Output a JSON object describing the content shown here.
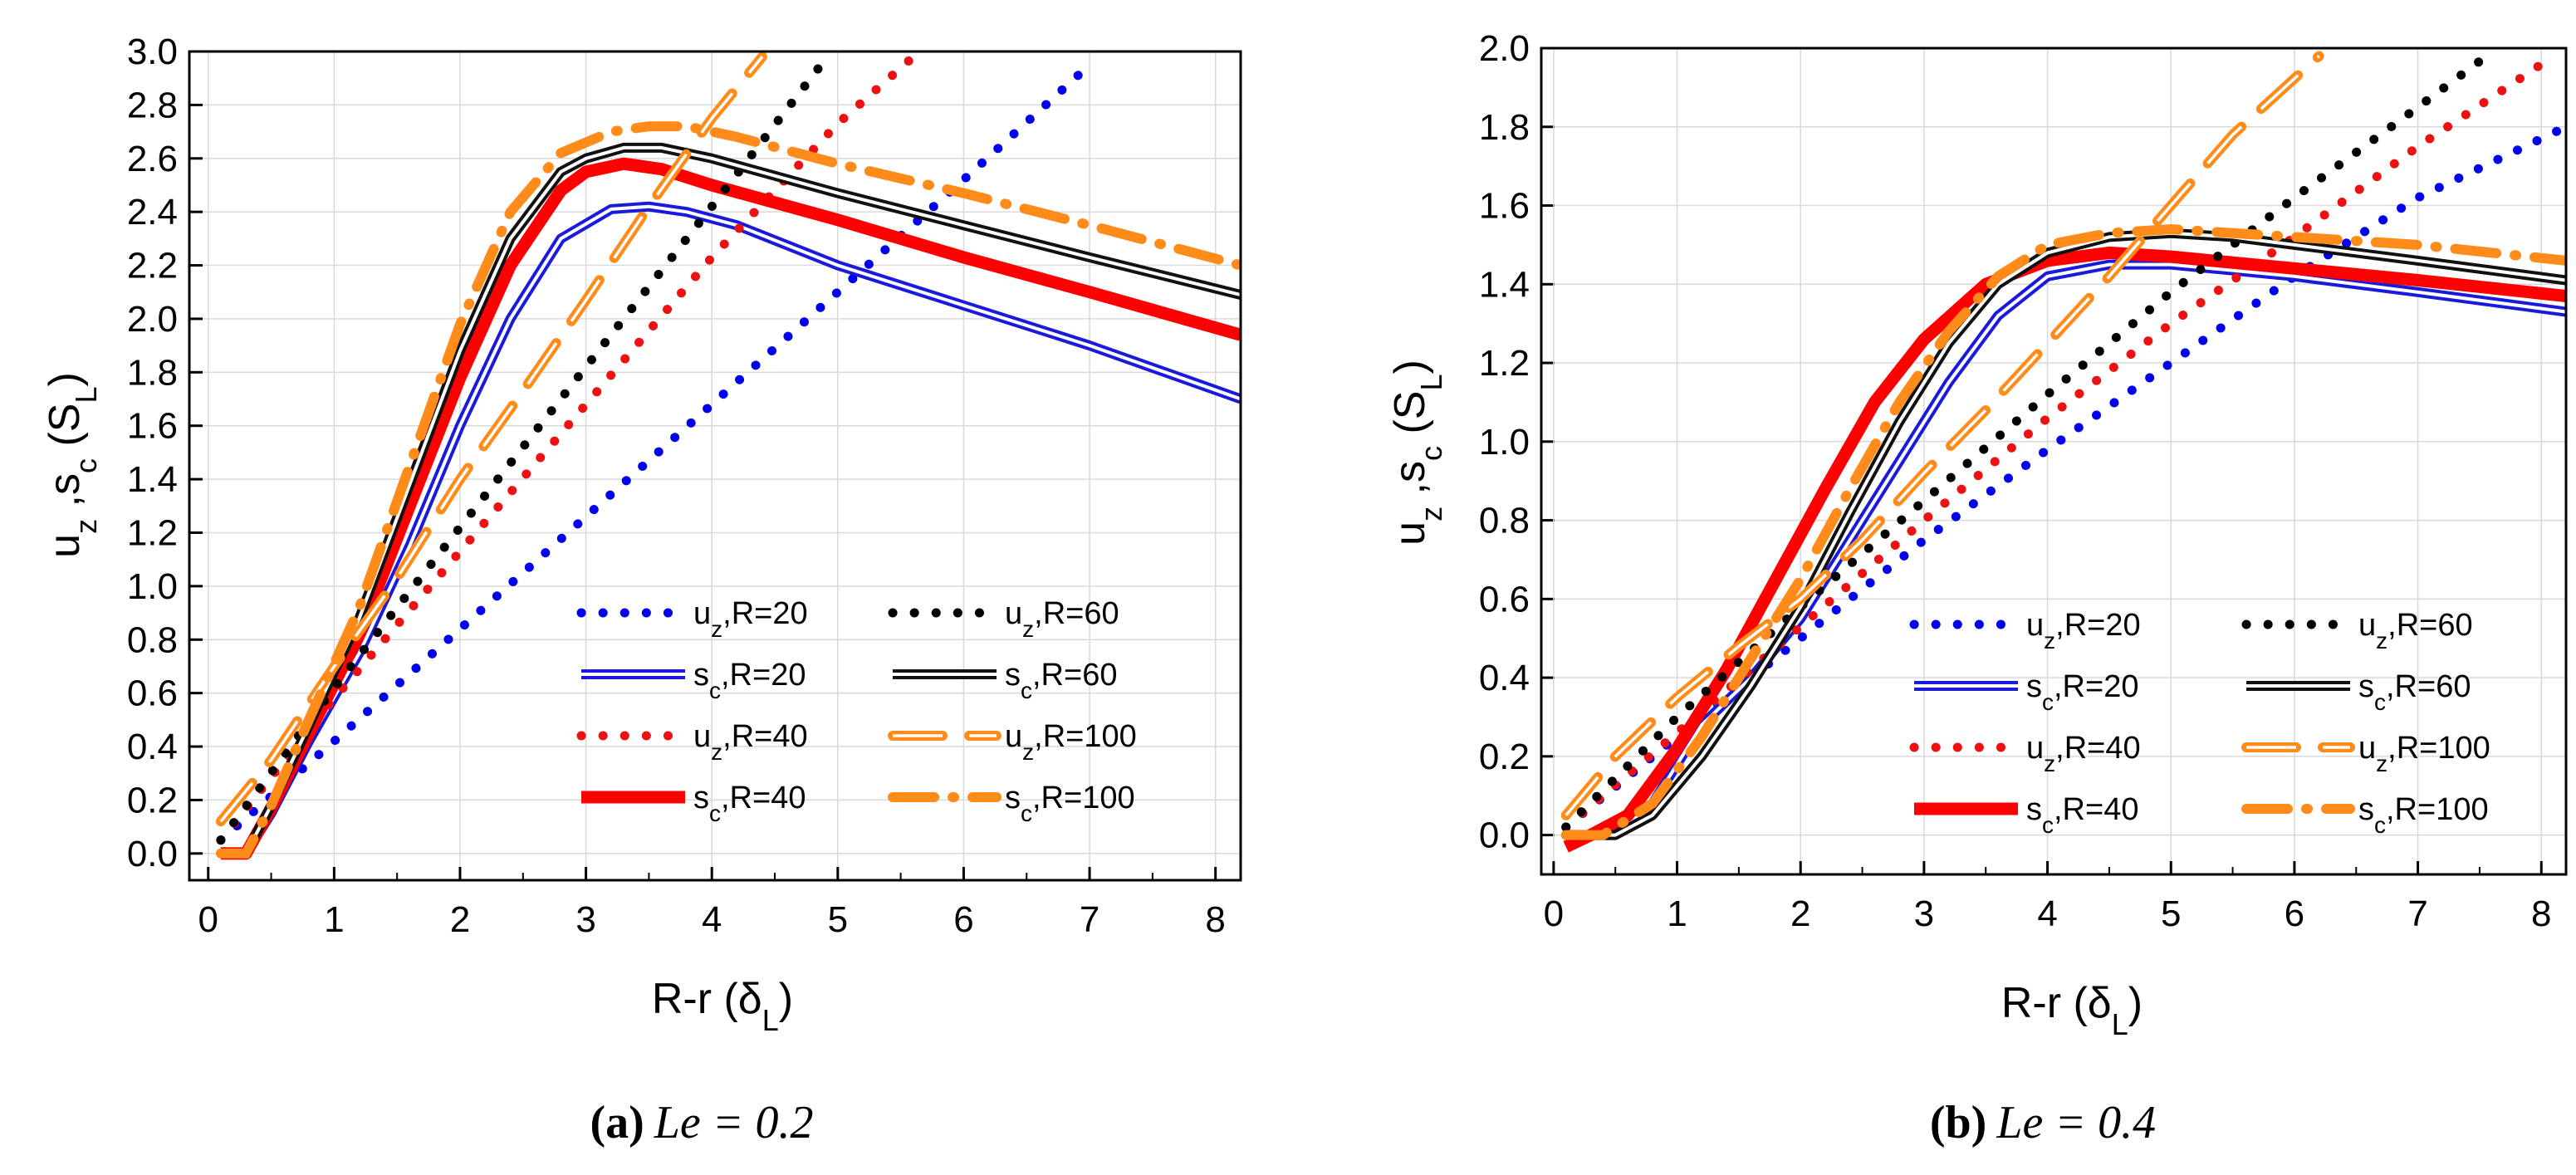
{
  "chart_data": [
    {
      "type": "line",
      "caption": {
        "label": "(a)",
        "text": "Le = 0.2"
      },
      "xlabel": "R-r (δL)",
      "ylabel": "uz ,sc (SL)",
      "xlim": [
        -0.15,
        8.2
      ],
      "ylim": [
        -0.1,
        3.0
      ],
      "xticks": [
        "0",
        "1",
        "2",
        "3",
        "4",
        "5",
        "6",
        "7",
        "8"
      ],
      "yticks": [
        "0.0",
        "0.2",
        "0.4",
        "0.6",
        "0.8",
        "1.0",
        "1.2",
        "1.4",
        "1.6",
        "1.8",
        "2.0",
        "2.2",
        "2.4",
        "2.6",
        "2.8",
        "3.0"
      ],
      "series": [
        {
          "name": "uz,R=20",
          "style": "dot",
          "color": "#0000ee",
          "x": [
            0.1,
            1,
            2,
            3,
            4,
            5,
            6,
            7
          ],
          "y": [
            0.05,
            0.42,
            0.84,
            1.26,
            1.68,
            2.1,
            2.52,
            2.95
          ]
        },
        {
          "name": "sc,R=20",
          "style": "double",
          "color": "#1a1adb",
          "x": [
            0.1,
            0.3,
            0.5,
            0.8,
            1.2,
            1.6,
            2.0,
            2.4,
            2.8,
            3.2,
            3.5,
            3.8,
            4.2,
            5.0,
            6.0,
            7.0,
            8.2
          ],
          "y": [
            0.0,
            0.0,
            0.15,
            0.42,
            0.75,
            1.15,
            1.6,
            2.0,
            2.3,
            2.41,
            2.42,
            2.4,
            2.35,
            2.2,
            2.05,
            1.9,
            1.7
          ]
        },
        {
          "name": "uz,R=40",
          "style": "dot",
          "color": "#ee1111",
          "x": [
            0.1,
            1,
            2,
            3,
            4,
            5,
            5.6
          ],
          "y": [
            0.05,
            0.58,
            1.13,
            1.68,
            2.23,
            2.73,
            2.98
          ]
        },
        {
          "name": "sc,R=40",
          "style": "thick",
          "color": "#ff0000",
          "x": [
            0.1,
            0.3,
            0.5,
            0.8,
            1.2,
            1.6,
            2.0,
            2.4,
            2.8,
            3.0,
            3.3,
            3.6,
            4.0,
            5.0,
            6.0,
            7.0,
            8.2
          ],
          "y": [
            0.0,
            0.0,
            0.17,
            0.45,
            0.82,
            1.3,
            1.78,
            2.2,
            2.48,
            2.55,
            2.58,
            2.56,
            2.5,
            2.37,
            2.23,
            2.1,
            1.94
          ]
        },
        {
          "name": "uz,R=60",
          "style": "dot",
          "color": "#000000",
          "x": [
            0.1,
            1,
            2,
            3,
            4,
            4.9
          ],
          "y": [
            0.05,
            0.62,
            1.22,
            1.82,
            2.42,
            2.97
          ]
        },
        {
          "name": "sc,R=60",
          "style": "double",
          "color": "#111111",
          "x": [
            0.1,
            0.3,
            0.5,
            0.8,
            1.2,
            1.6,
            2.0,
            2.4,
            2.8,
            3.0,
            3.3,
            3.6,
            4.0,
            5.0,
            6.0,
            7.0,
            8.2
          ],
          "y": [
            0.0,
            0.0,
            0.18,
            0.48,
            0.88,
            1.38,
            1.88,
            2.3,
            2.55,
            2.6,
            2.64,
            2.64,
            2.6,
            2.47,
            2.35,
            2.23,
            2.09
          ]
        },
        {
          "name": "uz,R=100",
          "style": "longdash",
          "color": "#ff8c1a",
          "x": [
            0.1,
            0.5,
            1,
            1.5,
            2,
            2.5,
            3,
            3.5,
            4,
            4.4
          ],
          "y": [
            0.12,
            0.35,
            0.7,
            1.03,
            1.4,
            1.73,
            2.07,
            2.42,
            2.75,
            2.98
          ]
        },
        {
          "name": "sc,R=100",
          "style": "dashdot",
          "color": "#ff8c1a",
          "x": [
            0.1,
            0.3,
            0.5,
            0.8,
            1.2,
            1.6,
            2.0,
            2.4,
            2.8,
            3.2,
            3.5,
            3.8,
            4.2,
            5.0,
            6.0,
            7.0,
            8.2
          ],
          "y": [
            0.0,
            0.0,
            0.18,
            0.5,
            0.92,
            1.45,
            1.98,
            2.4,
            2.62,
            2.7,
            2.72,
            2.72,
            2.68,
            2.58,
            2.47,
            2.35,
            2.2
          ]
        }
      ]
    },
    {
      "type": "line",
      "caption": {
        "label": "(b)",
        "text": "Le = 0.4"
      },
      "xlabel": "R-r (δL)",
      "ylabel": "uz ,sc (SL)",
      "xlim": [
        -0.1,
        8.2
      ],
      "ylim": [
        -0.1,
        2.0
      ],
      "xticks": [
        "0",
        "1",
        "2",
        "3",
        "4",
        "5",
        "6",
        "7",
        "8"
      ],
      "yticks": [
        "0.0",
        "0.2",
        "0.4",
        "0.6",
        "0.8",
        "1.0",
        "1.2",
        "1.4",
        "1.6",
        "1.8",
        "2.0"
      ],
      "series": [
        {
          "name": "uz,R=20",
          "style": "dot",
          "color": "#0000ee",
          "x": [
            0.1,
            1,
            2,
            3,
            4,
            5,
            6,
            7,
            8.2
          ],
          "y": [
            0.02,
            0.25,
            0.5,
            0.75,
            0.98,
            1.2,
            1.42,
            1.62,
            1.8
          ]
        },
        {
          "name": "sc,R=20",
          "style": "double",
          "color": "#1a1adb",
          "x": [
            0.1,
            0.5,
            0.8,
            1.2,
            1.6,
            2.0,
            2.4,
            2.8,
            3.2,
            3.6,
            4.0,
            4.5,
            5.0,
            6.0,
            7.0,
            8.2
          ],
          "y": [
            0.0,
            0.0,
            0.08,
            0.28,
            0.4,
            0.55,
            0.75,
            0.95,
            1.15,
            1.32,
            1.42,
            1.45,
            1.45,
            1.42,
            1.38,
            1.33
          ]
        },
        {
          "name": "uz,R=40",
          "style": "dot",
          "color": "#ee1111",
          "x": [
            0.1,
            1,
            2,
            3,
            4,
            5,
            6,
            7,
            8.1
          ],
          "y": [
            0.02,
            0.26,
            0.53,
            0.8,
            1.06,
            1.3,
            1.52,
            1.75,
            1.98
          ]
        },
        {
          "name": "sc,R=40",
          "style": "thick",
          "color": "#ff0000",
          "x": [
            0.1,
            0.3,
            0.6,
            1.0,
            1.4,
            1.8,
            2.2,
            2.6,
            3.0,
            3.5,
            4.0,
            4.5,
            5.0,
            6.0,
            7.0,
            8.2
          ],
          "y": [
            -0.03,
            0.0,
            0.05,
            0.22,
            0.42,
            0.65,
            0.88,
            1.1,
            1.26,
            1.4,
            1.46,
            1.48,
            1.47,
            1.44,
            1.41,
            1.37
          ]
        },
        {
          "name": "uz,R=60",
          "style": "dot",
          "color": "#000000",
          "x": [
            0.1,
            1,
            2,
            3,
            4,
            5,
            6,
            7,
            7.6
          ],
          "y": [
            0.02,
            0.3,
            0.58,
            0.85,
            1.12,
            1.38,
            1.62,
            1.85,
            1.99
          ]
        },
        {
          "name": "sc,R=60",
          "style": "double",
          "color": "#111111",
          "x": [
            0.1,
            0.5,
            0.8,
            1.2,
            1.6,
            2.0,
            2.4,
            2.8,
            3.2,
            3.6,
            4.0,
            4.5,
            5.0,
            5.5,
            6.0,
            7.0,
            8.2
          ],
          "y": [
            0.0,
            0.0,
            0.05,
            0.2,
            0.38,
            0.58,
            0.82,
            1.05,
            1.25,
            1.4,
            1.48,
            1.52,
            1.53,
            1.52,
            1.5,
            1.46,
            1.41
          ]
        },
        {
          "name": "uz,R=100",
          "style": "longdash",
          "color": "#ff8c1a",
          "x": [
            0.1,
            0.5,
            1,
            1.5,
            2,
            2.5,
            3,
            3.5,
            4,
            4.5,
            5,
            5.5,
            6.2
          ],
          "y": [
            0.05,
            0.2,
            0.35,
            0.48,
            0.6,
            0.75,
            0.92,
            1.08,
            1.25,
            1.42,
            1.6,
            1.78,
            1.98
          ]
        },
        {
          "name": "sc,R=100",
          "style": "dashdot",
          "color": "#ff8c1a",
          "x": [
            0.1,
            0.4,
            0.8,
            1.2,
            1.6,
            2.0,
            2.4,
            2.8,
            3.2,
            3.6,
            4.0,
            4.5,
            5.0,
            5.5,
            6.0,
            7.0,
            8.2
          ],
          "y": [
            0.0,
            0.0,
            0.08,
            0.25,
            0.45,
            0.65,
            0.88,
            1.1,
            1.28,
            1.42,
            1.5,
            1.53,
            1.54,
            1.53,
            1.52,
            1.5,
            1.46
          ]
        }
      ]
    }
  ]
}
